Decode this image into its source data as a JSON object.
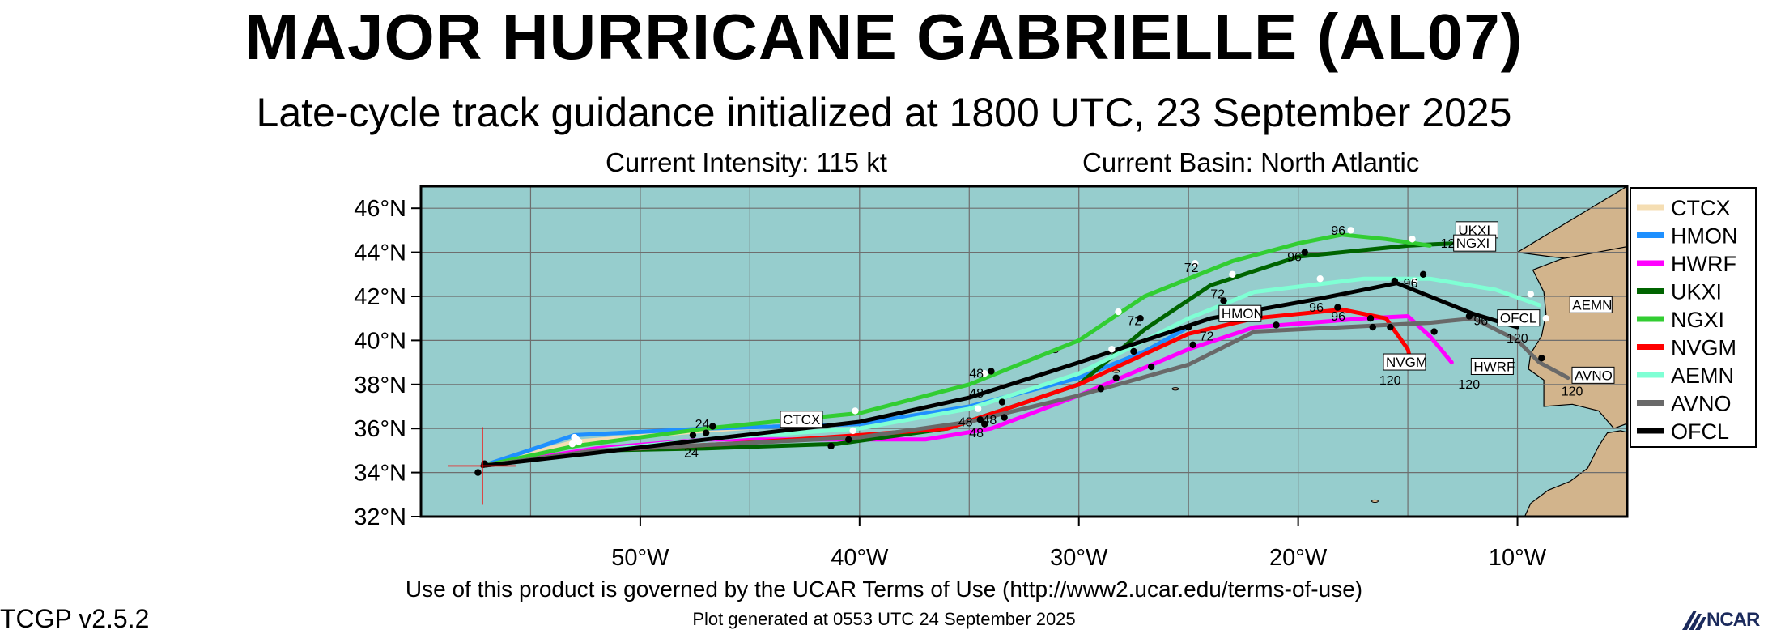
{
  "header": {
    "title": "MAJOR HURRICANE GABRIELLE (AL07)",
    "subtitle": "Late-cycle track guidance initialized at 1800 UTC, 23 September 2025",
    "intensity": "Current Intensity: 115 kt",
    "basin": "Current Basin: North Atlantic"
  },
  "footer": {
    "terms": "Use of this product is governed by the UCAR Terms of Use (http://www2.ucar.edu/terms-of-use)",
    "version": "TCGP v2.5.2",
    "generated": "Plot generated at 0553 UTC   24 September 2025",
    "logo_text": "NCAR"
  },
  "colors": {
    "ocean": "#96cdcd",
    "land": "#d2b48c",
    "grid": "#6e6e6e",
    "current_position": "#ff0000"
  },
  "chart_data": {
    "type": "line",
    "xlim": [
      -60,
      -5
    ],
    "ylim": [
      32,
      47
    ],
    "xticks": [
      -50,
      -40,
      -30,
      -20,
      -10
    ],
    "xtick_labels": [
      "50°W",
      "40°W",
      "30°W",
      "20°W",
      "10°W"
    ],
    "yticks": [
      32,
      34,
      36,
      38,
      40,
      42,
      44,
      46
    ],
    "ytick_labels": [
      "32°N",
      "34°N",
      "36°N",
      "38°N",
      "40°N",
      "42°N",
      "44°N",
      "46°N"
    ],
    "grid": true,
    "legend_position": "right",
    "current_position": {
      "lon": -57.2,
      "lat": 34.3
    },
    "series": [
      {
        "name": "CTCX",
        "color": "#f5deb3",
        "points": [
          [
            -57.2,
            34.3
          ],
          [
            -53,
            35.4
          ],
          [
            -47,
            35.9
          ],
          [
            -44,
            36.1
          ]
        ],
        "markers": [
          [
            -53.1,
            35.3
          ],
          [
            -52.9,
            35.5
          ],
          [
            -53,
            35.6
          ],
          [
            -52.8,
            35.4
          ]
        ],
        "labels": [],
        "endLabel": "CTCX",
        "endLabelAt": [
          -43.5,
          36.2
        ]
      },
      {
        "name": "HMON",
        "color": "#1e90ff",
        "points": [
          [
            -57.2,
            34.3
          ],
          [
            -53,
            35.7
          ],
          [
            -47,
            36.0
          ],
          [
            -40,
            36.2
          ],
          [
            -35,
            37.0
          ],
          [
            -30,
            38.3
          ],
          [
            -27,
            39.5
          ],
          [
            -25,
            40.6
          ]
        ],
        "markers": [
          [
            -27.5,
            39.5
          ],
          [
            -25,
            40.6
          ]
        ],
        "labels": [],
        "endLabel": "HMON",
        "endLabelAt": [
          -23.5,
          41.0
        ]
      },
      {
        "name": "HWRF",
        "color": "#ff00ff",
        "points": [
          [
            -57.2,
            34.3
          ],
          [
            -52,
            35.1
          ],
          [
            -47,
            35.5
          ],
          [
            -40,
            35.5
          ],
          [
            -37,
            35.5
          ],
          [
            -34,
            36.0
          ],
          [
            -30,
            37.5
          ],
          [
            -25,
            39.6
          ],
          [
            -22,
            40.6
          ],
          [
            -17,
            41.0
          ],
          [
            -15,
            41.1
          ],
          [
            -14,
            40.2
          ],
          [
            -13,
            39.0
          ]
        ],
        "markers": [
          [
            -40.5,
            35.5
          ],
          [
            -34.3,
            36.2
          ],
          [
            -29,
            37.8
          ],
          [
            -24.8,
            39.8
          ],
          [
            -21,
            40.7
          ],
          [
            -16.7,
            41.0
          ],
          [
            -13.8,
            40.4
          ]
        ],
        "labels": [
          [
            -18.5,
            40.9,
            "96"
          ],
          [
            -12.7,
            37.8,
            "120"
          ]
        ],
        "endLabel": "HWRF",
        "endLabelAt": [
          -12.0,
          38.6
        ]
      },
      {
        "name": "UKXI",
        "color": "#006400",
        "points": [
          [
            -57.2,
            34.3
          ],
          [
            -52,
            35.0
          ],
          [
            -47,
            35.1
          ],
          [
            -41,
            35.3
          ],
          [
            -36,
            36.0
          ],
          [
            -30,
            38.0
          ],
          [
            -27,
            40.5
          ],
          [
            -24,
            42.5
          ],
          [
            -20,
            43.8
          ],
          [
            -15,
            44.3
          ],
          [
            -13,
            44.4
          ]
        ],
        "markers": [
          [
            -34.5,
            36.4
          ],
          [
            -27.2,
            41.0
          ],
          [
            -23.4,
            41.8
          ],
          [
            -19.7,
            44.0
          ]
        ],
        "labels": [
          [
            -48,
            34.7,
            "24"
          ],
          [
            -35.5,
            36.1,
            "48"
          ],
          [
            -27.8,
            40.7,
            "72"
          ],
          [
            -20.5,
            43.6,
            "96"
          ],
          [
            -13.5,
            44.2,
            "120"
          ]
        ],
        "endLabel": "UKXI",
        "endLabelAt": [
          -12.7,
          44.8
        ]
      },
      {
        "name": "NGXI",
        "color": "#32cd32",
        "points": [
          [
            -57.2,
            34.3
          ],
          [
            -53,
            35.2
          ],
          [
            -47,
            36.0
          ],
          [
            -40,
            36.7
          ],
          [
            -35,
            38.0
          ],
          [
            -30,
            40.0
          ],
          [
            -27,
            42.0
          ],
          [
            -23,
            43.6
          ],
          [
            -20,
            44.4
          ],
          [
            -18,
            44.8
          ],
          [
            -16,
            44.6
          ],
          [
            -14,
            44.3
          ]
        ],
        "markers": [
          [
            -40.2,
            36.8
          ],
          [
            -34.3,
            38.5
          ],
          [
            -28.2,
            41.3
          ],
          [
            -24.7,
            43.5
          ],
          [
            -17.6,
            45.0
          ],
          [
            -14.8,
            44.6
          ]
        ],
        "labels": [
          [
            -35,
            38.3,
            "48"
          ],
          [
            -25.2,
            43.1,
            "72"
          ],
          [
            -18.5,
            44.8,
            "96"
          ]
        ],
        "endLabel": "NGXI",
        "endLabelAt": [
          -12.8,
          44.2
        ]
      },
      {
        "name": "NVGM",
        "color": "#ff0000",
        "points": [
          [
            -57.2,
            34.3
          ],
          [
            -52,
            35.0
          ],
          [
            -46,
            35.3
          ],
          [
            -40,
            35.7
          ],
          [
            -36,
            36.0
          ],
          [
            -30,
            38.0
          ],
          [
            -25,
            40.3
          ],
          [
            -22,
            41.0
          ],
          [
            -18,
            41.4
          ],
          [
            -16,
            41.0
          ],
          [
            -15,
            39.6
          ],
          [
            -14.8,
            38.8
          ]
        ],
        "markers": [
          [
            -33.4,
            36.5
          ],
          [
            -18.2,
            41.5
          ],
          [
            -15.8,
            40.6
          ]
        ],
        "labels": [
          [
            -34.4,
            36.2,
            "48"
          ],
          [
            -19.5,
            41.3,
            "96"
          ],
          [
            -16.3,
            38.0,
            "120"
          ]
        ],
        "endLabel": "NVGM",
        "endLabelAt": [
          -16.0,
          38.8
        ]
      },
      {
        "name": "AEMN",
        "color": "#7fffd4",
        "points": [
          [
            -57.2,
            34.3
          ],
          [
            -52,
            35.0
          ],
          [
            -46,
            35.6
          ],
          [
            -40,
            36.0
          ],
          [
            -35,
            36.9
          ],
          [
            -30,
            38.5
          ],
          [
            -25,
            41.0
          ],
          [
            -22,
            42.2
          ],
          [
            -17,
            42.8
          ],
          [
            -14,
            42.8
          ],
          [
            -11,
            42.3
          ],
          [
            -9,
            41.6
          ]
        ],
        "markers": [
          [
            -47,
            35.8
          ],
          [
            -40.3,
            35.9
          ],
          [
            -34.6,
            36.9
          ],
          [
            -28.5,
            39.6
          ],
          [
            -23,
            43.0
          ],
          [
            -19,
            42.8
          ],
          [
            -14.7,
            42.7
          ],
          [
            -9.4,
            42.1
          ],
          [
            -8.7,
            41.0
          ]
        ],
        "labels": [
          [
            -24,
            41.9,
            "72"
          ]
        ],
        "endLabel": "AEMN",
        "endLabelAt": [
          -7.5,
          41.4
        ]
      },
      {
        "name": "AVNO",
        "color": "#696969",
        "points": [
          [
            -57.2,
            34.3
          ],
          [
            -52,
            35.0
          ],
          [
            -46,
            35.3
          ],
          [
            -40,
            35.6
          ],
          [
            -35,
            36.3
          ],
          [
            -30,
            37.5
          ],
          [
            -25,
            38.9
          ],
          [
            -22,
            40.4
          ],
          [
            -18,
            40.6
          ],
          [
            -14,
            40.8
          ],
          [
            -12,
            41.0
          ],
          [
            -10,
            40.0
          ],
          [
            -9,
            39.0
          ],
          [
            -7.7,
            38.3
          ]
        ],
        "markers": [
          [
            -41.3,
            35.2
          ],
          [
            -28.3,
            38.3
          ],
          [
            -26.7,
            38.8
          ],
          [
            -16.6,
            40.6
          ],
          [
            -8.9,
            39.2
          ]
        ],
        "labels": [
          [
            -35,
            35.6,
            "48"
          ],
          [
            -24.5,
            40.0,
            "72"
          ],
          [
            -12.0,
            40.7,
            "96"
          ],
          [
            -8.0,
            37.5,
            "120"
          ]
        ],
        "endLabel": "AVNO",
        "endLabelAt": [
          -7.4,
          38.2
        ]
      },
      {
        "name": "OFCL",
        "color": "#000000",
        "points": [
          [
            -57.2,
            34.3
          ],
          [
            -52,
            34.9
          ],
          [
            -47,
            35.5
          ],
          [
            -40,
            36.3
          ],
          [
            -35,
            37.4
          ],
          [
            -30,
            39.0
          ],
          [
            -24,
            41.0
          ],
          [
            -19,
            41.9
          ],
          [
            -15.5,
            42.6
          ],
          [
            -12,
            41.2
          ],
          [
            -10,
            40.6
          ]
        ],
        "markers": [
          [
            -57.4,
            34.0
          ],
          [
            -57.1,
            34.4
          ],
          [
            -47.6,
            35.7
          ],
          [
            -47,
            35.8
          ],
          [
            -46.7,
            36.1
          ],
          [
            -34,
            38.6
          ],
          [
            -33.5,
            37.2
          ],
          [
            -15.6,
            42.7
          ],
          [
            -14.3,
            43.0
          ],
          [
            -12.2,
            41.1
          ]
        ],
        "labels": [
          [
            -47.5,
            36.0,
            "24"
          ],
          [
            -35,
            37.4,
            "48"
          ],
          [
            -15.2,
            42.4,
            "96"
          ],
          [
            -10.5,
            39.9,
            "120"
          ]
        ],
        "endLabel": "OFCL",
        "endLabelAt": [
          -10.8,
          40.8
        ]
      }
    ]
  }
}
